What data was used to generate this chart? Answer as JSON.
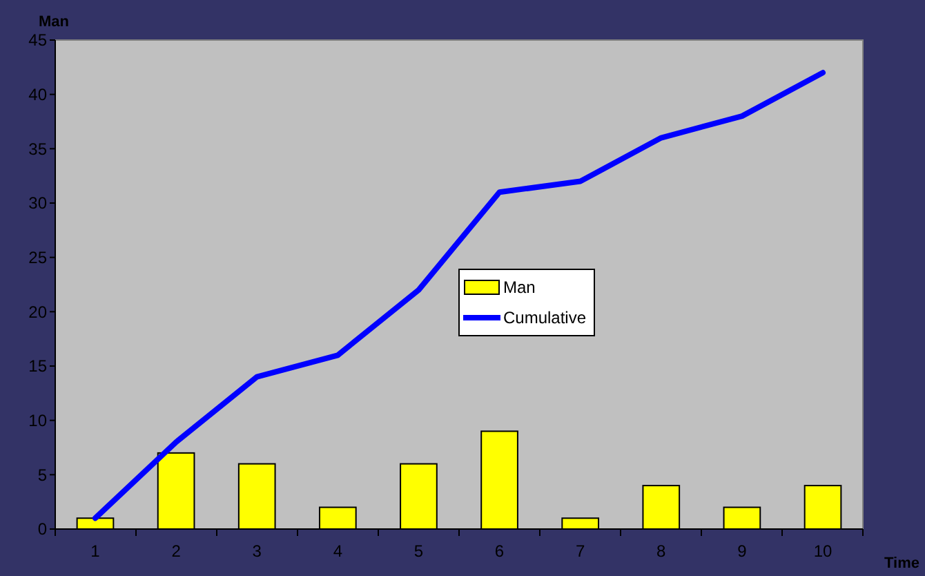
{
  "chart_data": {
    "type": "bar",
    "ylabel": "Man",
    "xlabel": "Time",
    "categories": [
      "1",
      "2",
      "3",
      "4",
      "5",
      "6",
      "7",
      "8",
      "9",
      "10"
    ],
    "series": [
      {
        "name": "Man",
        "color": "#ffff00",
        "values": [
          1,
          7,
          6,
          2,
          6,
          9,
          1,
          4,
          2,
          4
        ]
      },
      {
        "name": "Cumulative",
        "type": "line",
        "color": "#0000ff",
        "values": [
          1,
          8,
          14,
          16,
          22,
          31,
          32,
          36,
          38,
          42
        ]
      }
    ],
    "ylim": [
      0,
      45
    ],
    "yticks": [
      0,
      5,
      10,
      15,
      20,
      25,
      30,
      35,
      40,
      45
    ],
    "grid": false,
    "legend": "center",
    "marker": "none"
  }
}
